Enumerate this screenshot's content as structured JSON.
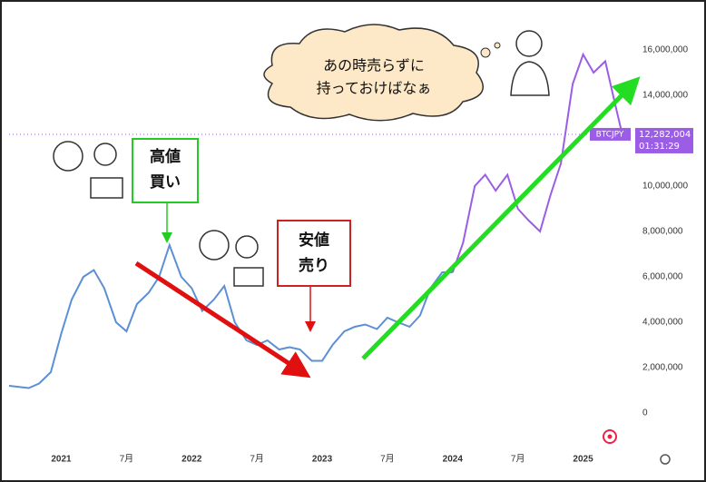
{
  "chart_data": {
    "type": "line",
    "series": [
      {
        "color": "#5b8fd6",
        "x": [
          2020.6,
          2020.75,
          2020.83,
          2020.92,
          2021.0,
          2021.08,
          2021.17,
          2021.25,
          2021.33,
          2021.42,
          2021.5,
          2021.58,
          2021.67,
          2021.75,
          2021.83,
          2021.92,
          2022.0,
          2022.08,
          2022.17,
          2022.25,
          2022.33,
          2022.42,
          2022.5,
          2022.58,
          2022.67,
          2022.75,
          2022.83,
          2022.92,
          2023.0,
          2023.08,
          2023.17,
          2023.25,
          2023.33,
          2023.42,
          2023.5,
          2023.58,
          2023.67,
          2023.75,
          2023.83,
          2023.92,
          2024.0
        ],
        "values": [
          1200000,
          1100000,
          1300000,
          1800000,
          3500000,
          5000000,
          6000000,
          6300000,
          5500000,
          4000000,
          3600000,
          4800000,
          5300000,
          6000000,
          7400000,
          6000000,
          5500000,
          4500000,
          5000000,
          5600000,
          4000000,
          3200000,
          3000000,
          3200000,
          2800000,
          2900000,
          2800000,
          2300000,
          2300000,
          3000000,
          3600000,
          3800000,
          3900000,
          3700000,
          4200000,
          4000000,
          3800000,
          4300000,
          5500000,
          6200000,
          6200000
        ]
      },
      {
        "color": "#9b5de5",
        "x": [
          2024.0,
          2024.08,
          2024.17,
          2024.25,
          2024.33,
          2024.42,
          2024.5,
          2024.58,
          2024.67,
          2024.75,
          2024.83,
          2024.92,
          2025.0,
          2025.08,
          2025.17,
          2025.25,
          2025.3
        ],
        "values": [
          6200000,
          7500000,
          10000000,
          10500000,
          9800000,
          10500000,
          9000000,
          8500000,
          8000000,
          9600000,
          11000000,
          14500000,
          15800000,
          15000000,
          15500000,
          13500000,
          12282004
        ]
      }
    ],
    "xlim": [
      2020.6,
      2025.33
    ],
    "xticks": [
      {
        "value": 2021,
        "label": "2021"
      },
      {
        "value": 2021.5,
        "label": "7月"
      },
      {
        "value": 2022,
        "label": "2022"
      },
      {
        "value": 2022.5,
        "label": "7月"
      },
      {
        "value": 2023,
        "label": "2023"
      },
      {
        "value": 2023.5,
        "label": "7月"
      },
      {
        "value": 2024,
        "label": "2024"
      },
      {
        "value": 2024.5,
        "label": "7月"
      },
      {
        "value": 2025,
        "label": "2025"
      }
    ],
    "ylim": [
      -1400000,
      17800000
    ],
    "yticks": [
      0,
      {
        "value": 2000000,
        "label": "2,000,000"
      },
      {
        "value": 4000000,
        "label": "4,000,000"
      },
      {
        "value": 6000000,
        "label": "6,000,000"
      },
      {
        "value": 8000000,
        "label": "8,000,000"
      },
      {
        "value": 10000000,
        "label": "10,000,000"
      },
      {
        "value": 12000000,
        "label": "12,000,000"
      },
      {
        "value": 14000000,
        "label": "14,000,000"
      },
      {
        "value": 16000000,
        "label": "16,000,000"
      }
    ],
    "price_line": {
      "value": 12282004,
      "label": "12,282,004",
      "symbol": "BTCJPY",
      "time": "01:31:29",
      "color": "#9b5de5"
    },
    "annotations": {
      "high": [
        "高値",
        "買い"
      ],
      "low": [
        "安値",
        "売り"
      ],
      "thought": [
        "あの時売らずに",
        "持っておけばなぁ"
      ]
    }
  }
}
